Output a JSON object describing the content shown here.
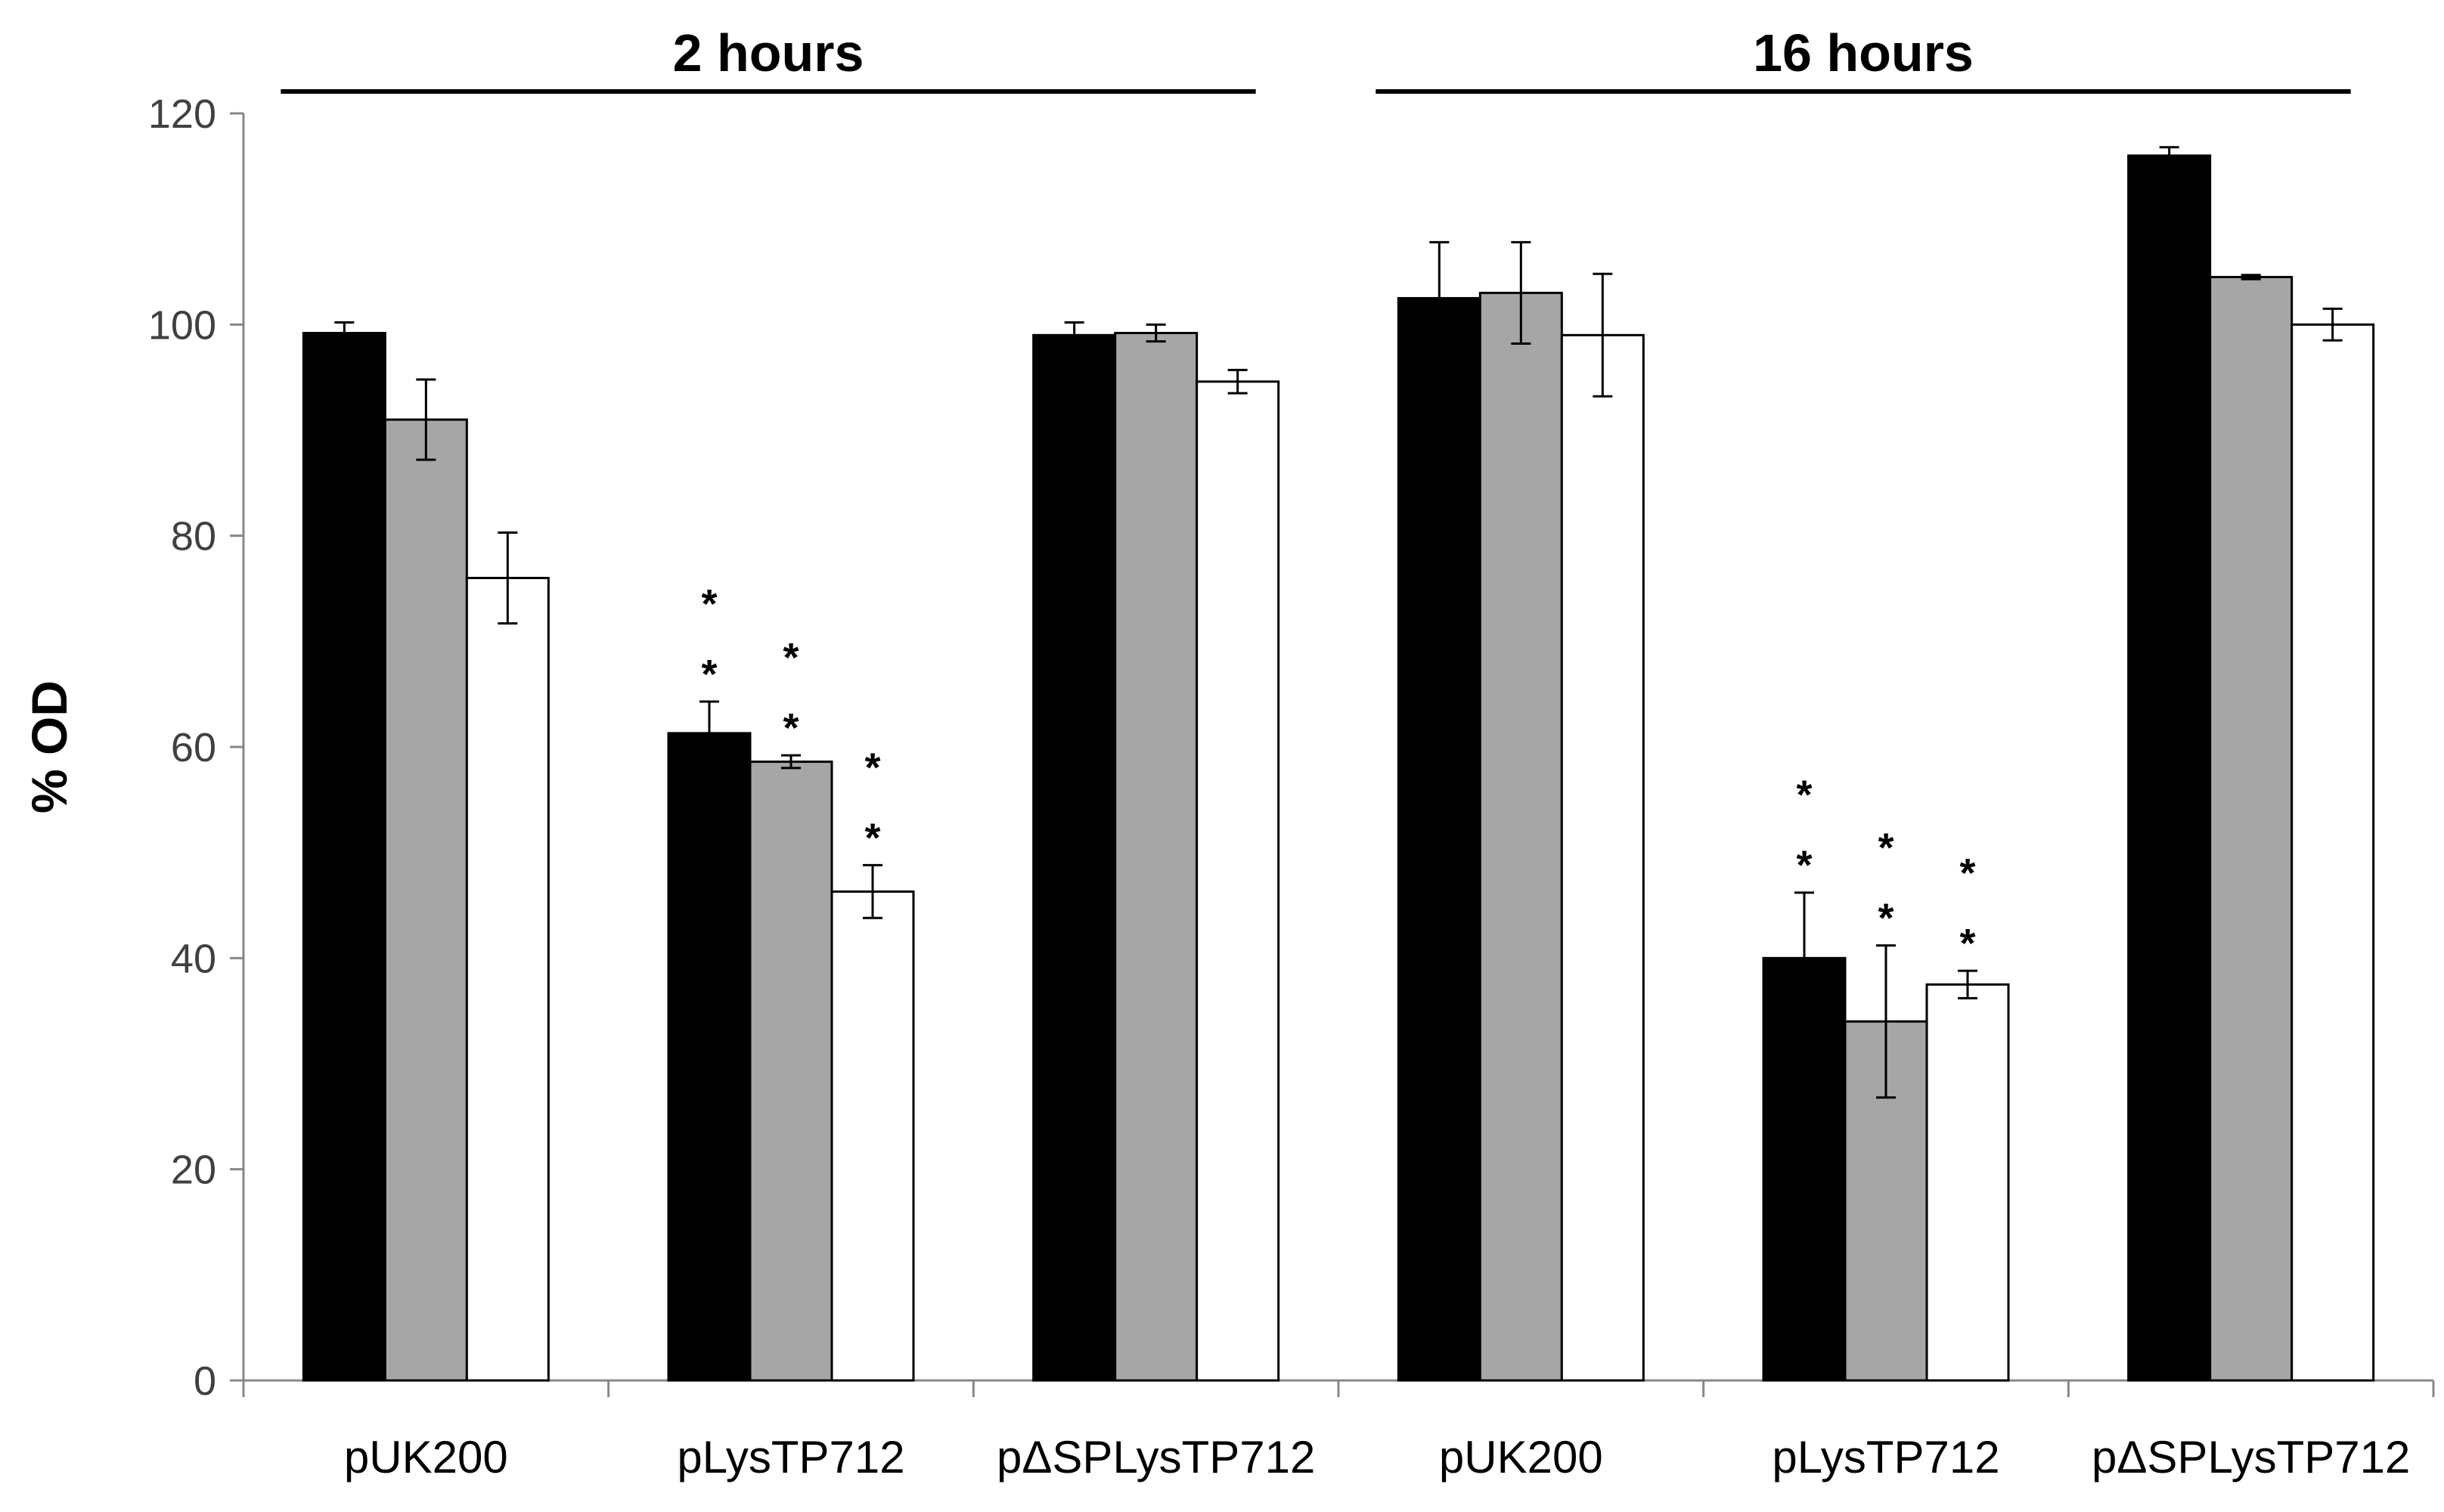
{
  "chart_data": {
    "type": "bar",
    "title": "",
    "xlabel": "",
    "ylabel": "% OD",
    "ylim": [
      0,
      120
    ],
    "yticks": [
      0,
      20,
      40,
      60,
      80,
      100,
      120
    ],
    "grid": false,
    "legend": null,
    "groups": [
      {
        "title": "2 hours",
        "categories": [
          0,
          1,
          2
        ]
      },
      {
        "title": "16 hours",
        "categories": [
          3,
          4,
          5
        ]
      }
    ],
    "categories": [
      "pUK200",
      "pLysTP712",
      "pΔSPLysTP712",
      "pUK200",
      "pLysTP712",
      "pΔSPLysTP712"
    ],
    "series": [
      {
        "name": "series 1",
        "color": "#000000",
        "values": [
          99.2,
          61.3,
          99.0,
          102.5,
          40.0,
          116.0
        ],
        "errors": [
          1.0,
          3.0,
          1.2,
          5.3,
          6.2,
          0.8
        ]
      },
      {
        "name": "series 2",
        "color": "#a6a6a6",
        "values": [
          91.0,
          58.6,
          99.2,
          103.0,
          34.0,
          104.5
        ],
        "errors": [
          3.8,
          0.6,
          0.8,
          4.8,
          7.2,
          0.2
        ]
      },
      {
        "name": "series 3",
        "color": "#ffffff",
        "values": [
          76.0,
          46.3,
          94.6,
          99.0,
          37.5,
          100.0
        ],
        "errors": [
          4.3,
          2.5,
          1.1,
          5.8,
          1.3,
          1.5
        ]
      }
    ],
    "significance": {
      "symbol": "*",
      "marked": [
        {
          "category": 1,
          "series": 0
        },
        {
          "category": 1,
          "series": 1
        },
        {
          "category": 1,
          "series": 2
        },
        {
          "category": 4,
          "series": 0
        },
        {
          "category": 4,
          "series": 1
        },
        {
          "category": 4,
          "series": 2
        }
      ]
    }
  }
}
